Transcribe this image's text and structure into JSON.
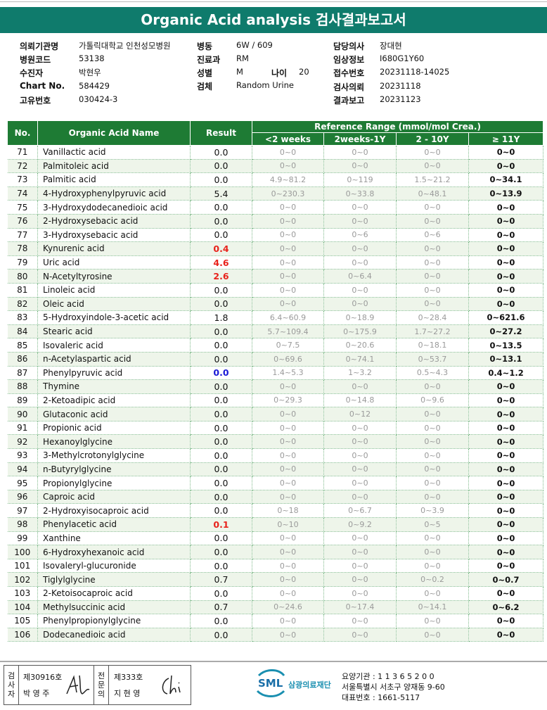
{
  "header": {
    "title": "Organic Acid analysis 검사결과보고서"
  },
  "info": {
    "institution": {
      "label": "의뢰기관명",
      "value": "가톨릭대학교 인천성모병원"
    },
    "hospital_code": {
      "label": "병원코드",
      "value": "53138"
    },
    "patient": {
      "label": "수진자",
      "value": "박현우"
    },
    "chart_no": {
      "label": "Chart No.",
      "value": "584429"
    },
    "unique_no": {
      "label": "고유번호",
      "value": "030424-3"
    },
    "ward": {
      "label": "병동",
      "value": "6W / 609"
    },
    "department": {
      "label": "진료과",
      "value": "RM"
    },
    "sex": {
      "label": "성별",
      "value": "M"
    },
    "age": {
      "label": "나이",
      "value": "20"
    },
    "specimen": {
      "label": "검체",
      "value": "Random Urine"
    },
    "doctor": {
      "label": "담당의사",
      "value": "장대현"
    },
    "clinical_info": {
      "label": "임상정보",
      "value": "I680G1Y60"
    },
    "receipt_no": {
      "label": "접수번호",
      "value": "20231118-14025"
    },
    "request_date": {
      "label": "검사의뢰",
      "value": "20231118"
    },
    "report_date": {
      "label": "결과보고",
      "value": "20231123"
    }
  },
  "table": {
    "columns": [
      "No.",
      "Organic Acid Name",
      "Result"
    ],
    "range_header": "Reference Range (mmol/mol Crea.)",
    "range_columns": [
      "<2 weeks",
      "2weeks-1Y",
      "2 - 10Y",
      "≥ 11Y"
    ],
    "rows": [
      {
        "cells": [
          "71",
          "Vanillactic acid",
          "0.0",
          "0~0",
          "0~0",
          "0~0",
          "0~0"
        ]
      },
      {
        "cells": [
          "72",
          "Palmitoleic acid",
          "0.0",
          "0~0",
          "0~0",
          "0~0",
          "0~0"
        ]
      },
      {
        "cells": [
          "73",
          "Palmitic acid",
          "0.0",
          "4.9~81.2",
          "0~119",
          "1.5~21.2",
          "0~34.1"
        ]
      },
      {
        "cells": [
          "74",
          "4-Hydroxyphenylpyruvic acid",
          "5.4",
          "0~230.3",
          "0~33.8",
          "0~48.1",
          "0~13.9"
        ]
      },
      {
        "cells": [
          "75",
          "3-Hydroxydodecanedioic acid",
          "0.0",
          "0~0",
          "0~0",
          "0~0",
          "0~0"
        ]
      },
      {
        "cells": [
          "76",
          "2-Hydroxysebacic acid",
          "0.0",
          "0~0",
          "0~0",
          "0~0",
          "0~0"
        ]
      },
      {
        "cells": [
          "77",
          "3-Hydroxysebacic acid",
          "0.0",
          "0~0",
          "0~6",
          "0~6",
          "0~0"
        ]
      },
      {
        "cells": [
          "78",
          "Kynurenic acid",
          "0.4",
          "0~0",
          "0~0",
          "0~0",
          "0~0"
        ],
        "result_color": "#e8231c"
      },
      {
        "cells": [
          "79",
          "Uric acid",
          "4.6",
          "0~0",
          "0~0",
          "0~0",
          "0~0"
        ],
        "result_color": "#e8231c"
      },
      {
        "cells": [
          "80",
          "N-Acetyltyrosine",
          "2.6",
          "0~0",
          "0~6.4",
          "0~0",
          "0~0"
        ],
        "result_color": "#e8231c"
      },
      {
        "cells": [
          "81",
          "Linoleic acid",
          "0.0",
          "0~0",
          "0~0",
          "0~0",
          "0~0"
        ]
      },
      {
        "cells": [
          "82",
          "Oleic acid",
          "0.0",
          "0~0",
          "0~0",
          "0~0",
          "0~0"
        ]
      },
      {
        "cells": [
          "83",
          "5-Hydroxyindole-3-acetic acid",
          "1.8",
          "6.4~60.9",
          "0~18.9",
          "0~28.4",
          "0~621.6"
        ]
      },
      {
        "cells": [
          "84",
          "Stearic acid",
          "0.0",
          "5.7~109.4",
          "0~175.9",
          "1.7~27.2",
          "0~27.2"
        ]
      },
      {
        "cells": [
          "85",
          "Isovaleric acid",
          "0.0",
          "0~7.5",
          "0~20.6",
          "0~18.1",
          "0~13.5"
        ]
      },
      {
        "cells": [
          "86",
          "n-Acetylaspartic acid",
          "0.0",
          "0~69.6",
          "0~74.1",
          "0~53.7",
          "0~13.1"
        ]
      },
      {
        "cells": [
          "87",
          "Phenylpyruvic acid",
          "0.0",
          "1.4~5.3",
          "1~3.2",
          "0.5~4.3",
          "0.4~1.2"
        ],
        "result_color": "#1a1ad6"
      },
      {
        "cells": [
          "88",
          "Thymine",
          "0.0",
          "0~0",
          "0~0",
          "0~0",
          "0~0"
        ]
      },
      {
        "cells": [
          "89",
          "2-Ketoadipic acid",
          "0.0",
          "0~29.3",
          "0~14.8",
          "0~9.6",
          "0~0"
        ]
      },
      {
        "cells": [
          "90",
          "Glutaconic acid",
          "0.0",
          "0~0",
          "0~12",
          "0~0",
          "0~0"
        ]
      },
      {
        "cells": [
          "91",
          "Propionic acid",
          "0.0",
          "0~0",
          "0~0",
          "0~0",
          "0~0"
        ]
      },
      {
        "cells": [
          "92",
          "Hexanoylglycine",
          "0.0",
          "0~0",
          "0~0",
          "0~0",
          "0~0"
        ]
      },
      {
        "cells": [
          "93",
          "3-Methylcrotonylglycine",
          "0.0",
          "0~0",
          "0~0",
          "0~0",
          "0~0"
        ]
      },
      {
        "cells": [
          "94",
          "n-Butyrylglycine",
          "0.0",
          "0~0",
          "0~0",
          "0~0",
          "0~0"
        ]
      },
      {
        "cells": [
          "95",
          "Propionylglycine",
          "0.0",
          "0~0",
          "0~0",
          "0~0",
          "0~0"
        ]
      },
      {
        "cells": [
          "96",
          "Caproic acid",
          "0.0",
          "0~0",
          "0~0",
          "0~0",
          "0~0"
        ]
      },
      {
        "cells": [
          "97",
          "2-Hydroxyisocaproic acid",
          "0.0",
          "0~18",
          "0~6.7",
          "0~3.9",
          "0~0"
        ]
      },
      {
        "cells": [
          "98",
          "Phenylacetic acid",
          "0.1",
          "0~10",
          "0~9.2",
          "0~5",
          "0~0"
        ],
        "result_color": "#e8231c"
      },
      {
        "cells": [
          "99",
          "Xanthine",
          "0.0",
          "0~0",
          "0~0",
          "0~0",
          "0~0"
        ]
      },
      {
        "cells": [
          "100",
          "6-Hydroxyhexanoic acid",
          "0.0",
          "0~0",
          "0~0",
          "0~0",
          "0~0"
        ]
      },
      {
        "cells": [
          "101",
          "Isovaleryl-glucuronide",
          "0.0",
          "0~0",
          "0~0",
          "0~0",
          "0~0"
        ]
      },
      {
        "cells": [
          "102",
          "Tiglylglycine",
          "0.7",
          "0~0",
          "0~0",
          "0~0.2",
          "0~0.7"
        ]
      },
      {
        "cells": [
          "103",
          "2-Ketoisocaproic acid",
          "0.0",
          "0~0",
          "0~0",
          "0~0",
          "0~0"
        ]
      },
      {
        "cells": [
          "104",
          "Methylsuccinic acid",
          "0.7",
          "0~24.6",
          "0~17.4",
          "0~14.1",
          "0~6.2"
        ]
      },
      {
        "cells": [
          "105",
          "Phenylpropionylglycine",
          "0.0",
          "0~0",
          "0~0",
          "0~0",
          "0~0"
        ]
      },
      {
        "cells": [
          "106",
          "Dodecanedioic acid",
          "0.0",
          "0~0",
          "0~0",
          "0~0",
          "0~0"
        ]
      }
    ]
  },
  "footer": {
    "examiner": {
      "label": "검사자",
      "license": "제30916호",
      "name": "박 영 주"
    },
    "specialist": {
      "label": "전문의",
      "license": "제333호",
      "name": "지 현 영"
    },
    "logo": {
      "mark": "SML",
      "name": "삼광의료재단"
    },
    "institution_code": "요양기관 : 1 1 3 6 5 2 0 0",
    "address": "서울특별시 서초구 양재동 9-60",
    "phone": "대표번호 : 1661-5117"
  }
}
